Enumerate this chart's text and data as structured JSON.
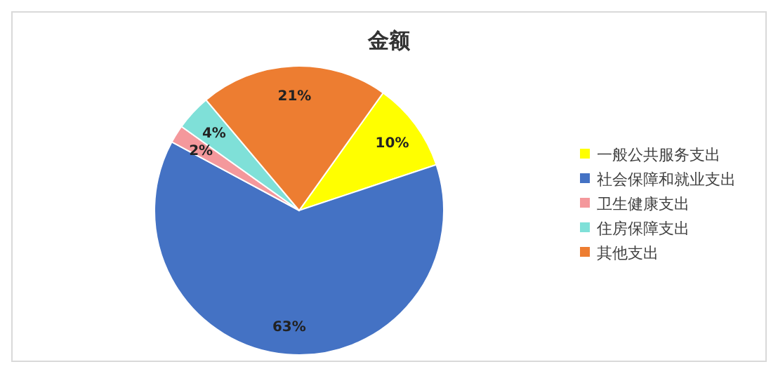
{
  "chart_data": {
    "type": "pie",
    "title": "金额",
    "categories": [
      "一般公共服务支出",
      "社会保障和就业支出",
      "卫生健康支出",
      "住房保障支出",
      "其他支出"
    ],
    "values": [
      10,
      63,
      2,
      4,
      21
    ],
    "value_labels": [
      "10%",
      "63%",
      "2%",
      "4%",
      "21%"
    ],
    "colors": [
      "#ffff00",
      "#4472c4",
      "#f4989c",
      "#7fe0d8",
      "#ed7d31"
    ],
    "legend": "right"
  }
}
